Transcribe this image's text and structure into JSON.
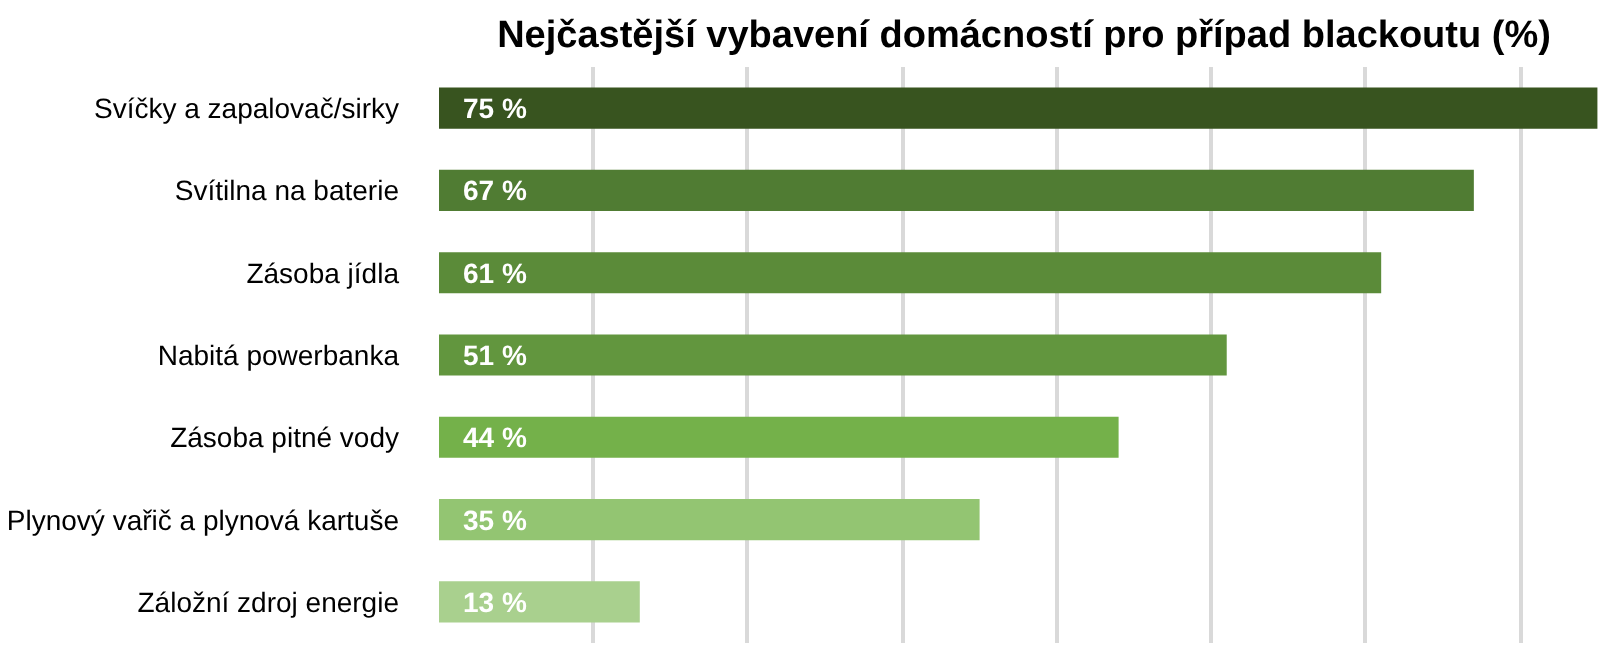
{
  "chart_data": {
    "type": "bar",
    "orientation": "horizontal",
    "title": "Nejčastější vybavení domácností pro případ blackoutu (%)",
    "categories": [
      "Svíčky a zapalovač/sirky",
      "Svítilna na baterie",
      "Zásoba jídla",
      "Nabitá powerbanka",
      "Zásoba pitné vody",
      "Plynový vařič a plynová kartuše",
      "Záložní zdroj energie"
    ],
    "values": [
      75,
      67,
      61,
      51,
      44,
      35,
      13
    ],
    "value_labels": [
      "75 %",
      "67 %",
      "61 %",
      "51 %",
      "44 %",
      "35 %",
      "13 %"
    ],
    "colors": [
      "#38541f",
      "#507c33",
      "#5b8b39",
      "#62963e",
      "#74b14a",
      "#93c572",
      "#a9d08e"
    ],
    "grid": "x",
    "tick_labels": "y"
  }
}
